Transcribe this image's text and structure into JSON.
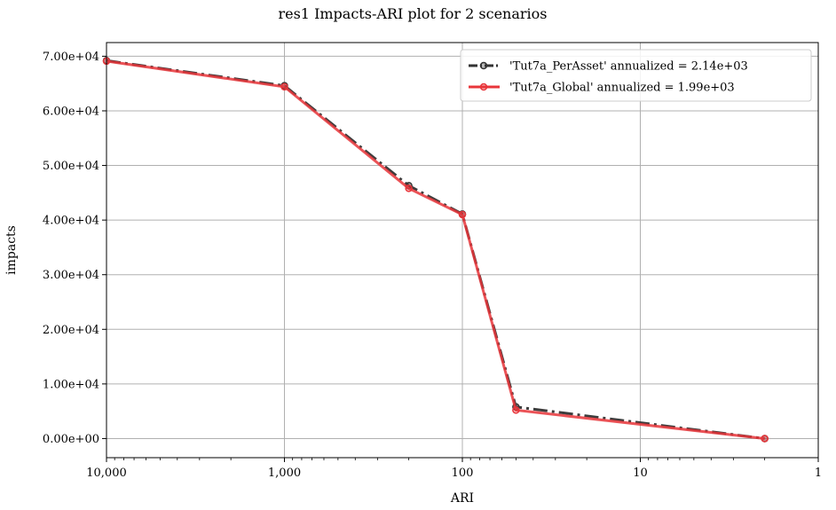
{
  "chart_data": {
    "type": "line",
    "title": "res1 Impacts-ARI plot for 2 scenarios",
    "xlabel": "ARI",
    "ylabel": "impacts",
    "x_scale": "log",
    "x_reversed": true,
    "xlim": [
      10000,
      1
    ],
    "ylim": [
      -3500,
      72500
    ],
    "grid": true,
    "legend_position": "top-right",
    "x_ticks": [
      {
        "value": 10000,
        "label": "10,000"
      },
      {
        "value": 1000,
        "label": "1,000"
      },
      {
        "value": 100,
        "label": "100"
      },
      {
        "value": 10,
        "label": "10"
      },
      {
        "value": 1,
        "label": "1"
      }
    ],
    "y_ticks": [
      {
        "value": 0,
        "label": "0.00e+00"
      },
      {
        "value": 10000,
        "label": "1.00e+04"
      },
      {
        "value": 20000,
        "label": "2.00e+04"
      },
      {
        "value": 30000,
        "label": "3.00e+04"
      },
      {
        "value": 40000,
        "label": "4.00e+04"
      },
      {
        "value": 50000,
        "label": "5.00e+04"
      },
      {
        "value": 60000,
        "label": "6.00e+04"
      },
      {
        "value": 70000,
        "label": "7.00e+04"
      }
    ],
    "series": [
      {
        "name": "'Tut7a_PerAsset' annualized = 2.14e+03",
        "color": "#333333",
        "line_style": "dashdot",
        "points": [
          {
            "x": 10000,
            "y": 69200
          },
          {
            "x": 1000,
            "y": 64600
          },
          {
            "x": 200,
            "y": 46300
          },
          {
            "x": 100,
            "y": 41100
          },
          {
            "x": 50,
            "y": 5800
          },
          {
            "x": 2,
            "y": 0
          }
        ]
      },
      {
        "name": "'Tut7a_Global' annualized = 1.99e+03",
        "color": "#e8353a",
        "line_style": "solid",
        "points": [
          {
            "x": 10000,
            "y": 69100
          },
          {
            "x": 1000,
            "y": 64400
          },
          {
            "x": 200,
            "y": 45800
          },
          {
            "x": 100,
            "y": 41000
          },
          {
            "x": 50,
            "y": 5200
          },
          {
            "x": 2,
            "y": 0
          }
        ]
      }
    ]
  }
}
